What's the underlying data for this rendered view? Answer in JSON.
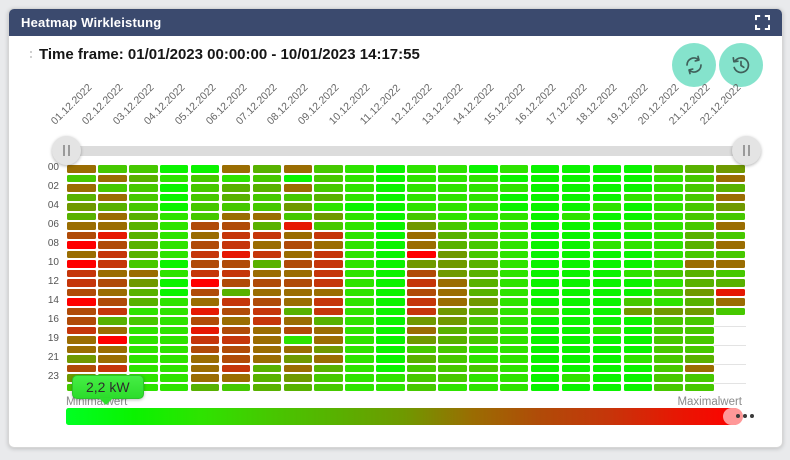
{
  "panel": {
    "title": "Heatmap Wirkleistung"
  },
  "toolbar": {
    "time_frame_text": "Time frame: 01/01/2023 00:00:00 - 10/01/2023 14:17:55"
  },
  "icons": {
    "fullscreen": "expand-corners",
    "refresh": "circular-arrows",
    "history": "clock-rewind",
    "slider_handle": "pause-bars",
    "legend_handle": "three-dots"
  },
  "chart_data": {
    "type": "heatmap",
    "title": "Heatmap Wirkleistung",
    "unit": "kW",
    "tooltip_value": "2,2 kW",
    "legend": {
      "min_label": "Minimalwert",
      "max_label": "Maximalwert"
    },
    "x_labels": [
      "01.12.2022",
      "02.12.2022",
      "03.12.2022",
      "04.12.2022",
      "05.12.2022",
      "06.12.2022",
      "07.12.2022",
      "08.12.2022",
      "09.12.2022",
      "10.12.2022",
      "11.12.2022",
      "12.12.2022",
      "13.12.2022",
      "14.12.2022",
      "15.12.2022",
      "16.12.2022",
      "17.12.2022",
      "18.12.2022",
      "19.12.2022",
      "20.12.2022",
      "21.12.2022",
      "22.12.2022"
    ],
    "y_labels": [
      "00",
      "02",
      "04",
      "06",
      "08",
      "10",
      "12",
      "14",
      "16",
      "19",
      "21",
      "23"
    ],
    "y_label_row_step": 2,
    "value_range": [
      0,
      10
    ],
    "color_scale": [
      "#00ff22",
      "#0af300",
      "#2ee300",
      "#46c800",
      "#58b100",
      "#6f9900",
      "#9a6d02",
      "#b04b08",
      "#c5360a",
      "#e61803",
      "#ff0000"
    ],
    "values": [
      [
        6,
        3,
        3,
        1,
        1,
        6,
        4,
        6,
        3,
        2,
        1,
        2,
        2,
        1,
        2,
        1,
        1,
        1,
        1,
        3,
        4,
        5
      ],
      [
        3,
        6,
        4,
        2,
        3,
        2,
        3,
        1,
        3,
        2,
        1,
        2,
        2,
        2,
        1,
        1,
        1,
        1,
        1,
        2,
        3,
        6
      ],
      [
        6,
        3,
        3,
        1,
        3,
        4,
        4,
        6,
        3,
        2,
        1,
        2,
        2,
        2,
        2,
        1,
        1,
        1,
        1,
        2,
        3,
        4
      ],
      [
        4,
        6,
        3,
        1,
        3,
        4,
        3,
        3,
        4,
        2,
        1,
        2,
        2,
        2,
        1,
        1,
        1,
        1,
        2,
        2,
        3,
        6
      ],
      [
        5,
        4,
        3,
        1,
        3,
        3,
        3,
        5,
        2,
        1,
        1,
        2,
        2,
        2,
        1,
        1,
        1,
        2,
        1,
        2,
        3,
        5
      ],
      [
        4,
        6,
        4,
        2,
        3,
        6,
        6,
        3,
        5,
        2,
        1,
        3,
        2,
        2,
        2,
        1,
        2,
        1,
        1,
        2,
        3,
        3
      ],
      [
        6,
        6,
        4,
        2,
        7,
        7,
        4,
        9,
        3,
        2,
        1,
        5,
        3,
        2,
        2,
        1,
        1,
        1,
        2,
        2,
        3,
        6
      ],
      [
        7,
        9,
        4,
        2,
        6,
        8,
        8,
        6,
        8,
        2,
        1,
        6,
        4,
        3,
        2,
        1,
        1,
        1,
        1,
        2,
        4,
        3
      ],
      [
        10,
        7,
        4,
        2,
        7,
        8,
        6,
        7,
        6,
        2,
        1,
        6,
        4,
        3,
        2,
        1,
        1,
        2,
        2,
        2,
        4,
        6
      ],
      [
        6,
        8,
        4,
        2,
        8,
        9,
        8,
        6,
        8,
        2,
        1,
        10,
        5,
        3,
        2,
        1,
        1,
        1,
        1,
        2,
        3,
        3
      ],
      [
        10,
        8,
        3,
        1,
        7,
        7,
        4,
        7,
        8,
        2,
        1,
        5,
        5,
        4,
        2,
        1,
        1,
        1,
        1,
        2,
        6,
        6
      ],
      [
        8,
        6,
        6,
        2,
        8,
        8,
        6,
        6,
        8,
        2,
        1,
        7,
        5,
        4,
        2,
        1,
        1,
        1,
        2,
        3,
        4,
        3
      ],
      [
        8,
        7,
        5,
        1,
        10,
        7,
        7,
        7,
        8,
        2,
        1,
        8,
        6,
        4,
        2,
        1,
        1,
        1,
        1,
        2,
        4,
        4
      ],
      [
        7,
        6,
        4,
        1,
        7,
        4,
        6,
        6,
        6,
        2,
        1,
        7,
        6,
        4,
        2,
        1,
        1,
        1,
        1,
        3,
        5,
        9
      ],
      [
        10,
        7,
        4,
        2,
        6,
        8,
        7,
        6,
        8,
        2,
        1,
        8,
        6,
        5,
        2,
        1,
        1,
        1,
        3,
        2,
        4,
        6
      ],
      [
        7,
        8,
        2,
        2,
        9,
        7,
        8,
        4,
        8,
        2,
        1,
        8,
        5,
        4,
        2,
        2,
        1,
        1,
        5,
        5,
        5,
        3
      ],
      [
        7,
        4,
        3,
        2,
        7,
        6,
        8,
        6,
        4,
        2,
        1,
        5,
        5,
        3,
        2,
        1,
        1,
        1,
        1,
        3,
        3,
        null
      ],
      [
        8,
        6,
        2,
        2,
        9,
        7,
        6,
        7,
        6,
        2,
        1,
        6,
        4,
        3,
        2,
        1,
        1,
        2,
        1,
        3,
        3,
        null
      ],
      [
        6,
        10,
        2,
        2,
        8,
        8,
        6,
        2,
        6,
        2,
        1,
        5,
        4,
        3,
        2,
        1,
        1,
        1,
        1,
        3,
        3,
        null
      ],
      [
        6,
        6,
        2,
        2,
        7,
        7,
        6,
        6,
        5,
        2,
        1,
        3,
        3,
        2,
        2,
        1,
        1,
        1,
        1,
        3,
        3,
        null
      ],
      [
        5,
        6,
        2,
        2,
        6,
        7,
        6,
        5,
        6,
        2,
        1,
        4,
        3,
        2,
        2,
        1,
        1,
        1,
        2,
        3,
        4,
        null
      ],
      [
        7,
        8,
        2,
        2,
        6,
        8,
        4,
        6,
        4,
        2,
        1,
        3,
        3,
        3,
        2,
        1,
        1,
        1,
        1,
        3,
        6,
        null
      ],
      [
        5,
        3,
        2,
        2,
        6,
        6,
        4,
        5,
        3,
        2,
        2,
        3,
        3,
        2,
        2,
        1,
        2,
        1,
        1,
        3,
        3,
        null
      ],
      [
        3,
        3,
        2,
        2,
        4,
        3,
        4,
        4,
        3,
        2,
        2,
        3,
        2,
        2,
        2,
        1,
        1,
        1,
        1,
        3,
        3,
        null
      ]
    ]
  }
}
